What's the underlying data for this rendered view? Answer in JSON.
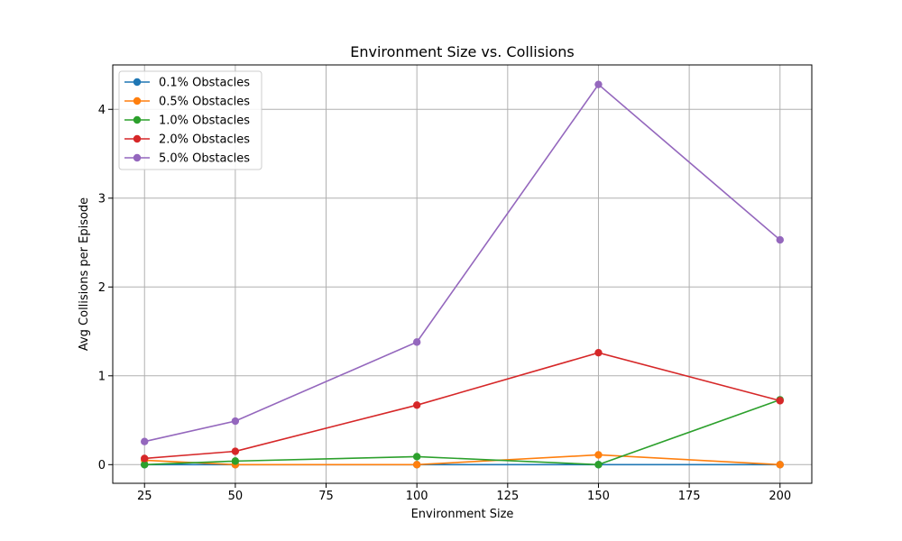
{
  "chart_data": {
    "type": "line",
    "title": "Environment Size vs. Collisions",
    "xlabel": "Environment Size",
    "ylabel": "Avg Collisions per Episode",
    "xlim": [
      16.25,
      208.75
    ],
    "ylim": [
      -0.21,
      4.5
    ],
    "grid": true,
    "legend_position": "top-left",
    "xticks": [
      25,
      50,
      75,
      100,
      125,
      150,
      175,
      200
    ],
    "yticks": [
      0,
      1,
      2,
      3,
      4
    ],
    "x": [
      25,
      50,
      100,
      150,
      200
    ],
    "series": [
      {
        "name": "0.1% Obstacles",
        "color": "#1f77b4",
        "values": [
          0.0,
          0.0,
          0.0,
          0.0,
          0.0
        ]
      },
      {
        "name": "0.5% Obstacles",
        "color": "#ff7f0e",
        "values": [
          0.05,
          0.0,
          0.0,
          0.11,
          0.0
        ]
      },
      {
        "name": "1.0% Obstacles",
        "color": "#2ca02c",
        "values": [
          0.0,
          0.04,
          0.09,
          0.0,
          0.73
        ]
      },
      {
        "name": "2.0% Obstacles",
        "color": "#d62728",
        "values": [
          0.07,
          0.15,
          0.67,
          1.26,
          0.72
        ]
      },
      {
        "name": "5.0% Obstacles",
        "color": "#9467bd",
        "values": [
          0.26,
          0.49,
          1.38,
          4.28,
          2.53
        ]
      }
    ]
  }
}
